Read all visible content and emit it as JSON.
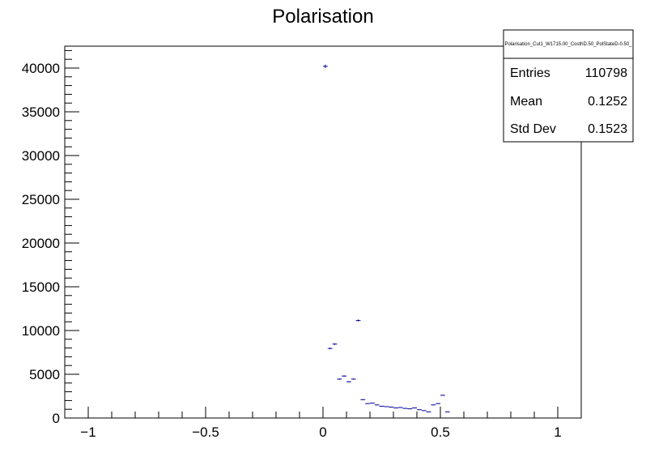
{
  "chart_data": {
    "type": "scatter",
    "title": "Polarisation",
    "xlabel": "",
    "ylabel": "",
    "xlim": [
      -1.1,
      1.1
    ],
    "ylim": [
      0,
      42500
    ],
    "x_ticks": [
      -1,
      -0.5,
      0,
      0.5,
      1
    ],
    "x_tick_labels": [
      "−1",
      "−0.5",
      "0",
      "0.5",
      "1"
    ],
    "y_ticks": [
      0,
      5000,
      10000,
      15000,
      20000,
      25000,
      30000,
      35000,
      40000
    ],
    "y_tick_labels": [
      "0",
      "5000",
      "10000",
      "15000",
      "20000",
      "25000",
      "30000",
      "35000",
      "40000"
    ],
    "bin_width": 0.02,
    "marker_color": "#000099",
    "grid": false,
    "legend": "none",
    "stats_box": {
      "title": "Polarisation_Cut1_W1715.00_CosthD.50_PolStateD-0.50_",
      "placement": "top-right",
      "entries_label": "Entries",
      "entries_value": "110798",
      "mean_label": "Mean",
      "mean_value": "0.1252",
      "std_label": "Std Dev",
      "std_value": "0.1523"
    },
    "points": [
      {
        "x": 0.01,
        "y": 40200
      },
      {
        "x": 0.03,
        "y": 7950
      },
      {
        "x": 0.05,
        "y": 8450
      },
      {
        "x": 0.07,
        "y": 4450
      },
      {
        "x": 0.09,
        "y": 4800
      },
      {
        "x": 0.11,
        "y": 4150
      },
      {
        "x": 0.13,
        "y": 4450
      },
      {
        "x": 0.15,
        "y": 11150
      },
      {
        "x": 0.17,
        "y": 2100
      },
      {
        "x": 0.19,
        "y": 1650
      },
      {
        "x": 0.21,
        "y": 1700
      },
      {
        "x": 0.23,
        "y": 1500
      },
      {
        "x": 0.25,
        "y": 1350
      },
      {
        "x": 0.27,
        "y": 1300
      },
      {
        "x": 0.29,
        "y": 1250
      },
      {
        "x": 0.31,
        "y": 1150
      },
      {
        "x": 0.33,
        "y": 1200
      },
      {
        "x": 0.35,
        "y": 1100
      },
      {
        "x": 0.37,
        "y": 1050
      },
      {
        "x": 0.39,
        "y": 1150
      },
      {
        "x": 0.41,
        "y": 950
      },
      {
        "x": 0.43,
        "y": 850
      },
      {
        "x": 0.45,
        "y": 700
      },
      {
        "x": 0.47,
        "y": 1500
      },
      {
        "x": 0.49,
        "y": 1650
      },
      {
        "x": 0.51,
        "y": 2600
      },
      {
        "x": 0.53,
        "y": 700
      }
    ]
  }
}
